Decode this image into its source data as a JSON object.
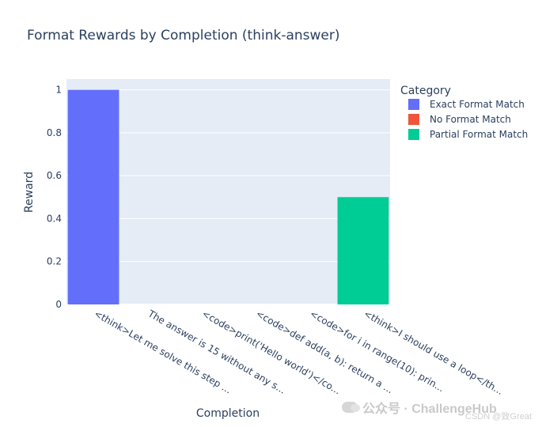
{
  "chart_data": {
    "type": "bar",
    "title": "Format Rewards by Completion (think-answer)",
    "xlabel": "Completion",
    "ylabel": "Reward",
    "ylim": [
      0,
      1.05
    ],
    "yticks": [
      0,
      0.2,
      0.4,
      0.6,
      0.8,
      1
    ],
    "ytick_labels": [
      "0",
      "0.2",
      "0.4",
      "0.6",
      "0.8",
      "1"
    ],
    "grid": true,
    "legend_title": "Category",
    "legend_position": "top-right",
    "categories": [
      "<think>Let me solve this step ...",
      "The answer is 15 without any s...",
      "<code>print('Hello world')</co...",
      "<code>def add(a, b): return a ...",
      "<code>for i in range(10): prin...",
      "<think>I should use a loop</th..."
    ],
    "series": [
      {
        "name": "Exact Format Match",
        "color": "#636efa",
        "values": [
          1,
          null,
          null,
          null,
          null,
          null
        ]
      },
      {
        "name": "No Format Match",
        "color": "#ef553b",
        "values": [
          null,
          0,
          0,
          0,
          0,
          null
        ]
      },
      {
        "name": "Partial Format Match",
        "color": "#00cc96",
        "values": [
          null,
          null,
          null,
          null,
          null,
          0.5
        ]
      }
    ]
  },
  "watermark": {
    "text": "公众号 · ChallengeHub",
    "csdn": "CSDN @致Great"
  }
}
